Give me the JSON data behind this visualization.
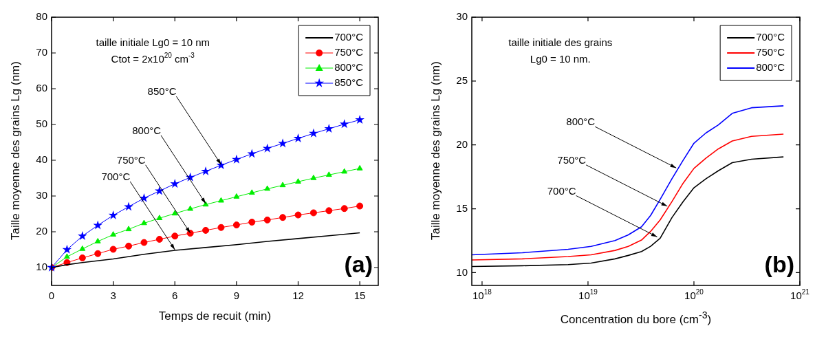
{
  "chart_data": [
    {
      "type": "line",
      "xlabel": "Temps de recuit (min)",
      "ylabel": "Taille moyenne des grains Lg (nm)",
      "xlim": [
        0,
        15.9
      ],
      "xticks": [
        0,
        3,
        6,
        9,
        12,
        15
      ],
      "ylim": [
        5,
        80
      ],
      "yticks": [
        10,
        20,
        30,
        40,
        50,
        60,
        70,
        80
      ],
      "grid": false,
      "legend": "top right",
      "line_style": "solid",
      "x": [
        0,
        0.75,
        1.5,
        2.25,
        3,
        3.75,
        4.5,
        5.25,
        6,
        6.75,
        7.5,
        8.25,
        9,
        9.75,
        10.5,
        11.25,
        12,
        12.75,
        13.5,
        14.25,
        15
      ],
      "annotations": [
        "taille initiale Lg0 = 10 nm",
        "Ctot = 2x10$^{20}$ cm$^{-3}$",
        "(a)",
        {
          "text": "850°C",
          "x": 8.25,
          "y": 38.8
        },
        {
          "text": "800°C",
          "x": 7.5,
          "y": 27.9
        },
        {
          "text": "750°C",
          "x": 6.75,
          "y": 19.65
        },
        {
          "text": "700°C",
          "x": 6,
          "y": 15
        }
      ],
      "series": [
        {
          "name": "700°C",
          "color": "#000000",
          "marker": "none",
          "x": [
            0,
            0.75,
            1.5,
            3,
            4.5,
            6,
            7.5,
            9,
            10.5,
            12,
            13.5,
            15
          ],
          "values": [
            10,
            10.8,
            11.4,
            12.4,
            13.7,
            14.8,
            15.6,
            16.4,
            17.3,
            18.1,
            18.9,
            19.7
          ]
        },
        {
          "name": "750°C",
          "color": "#ff0000",
          "marker": "circle",
          "values": [
            10,
            11.4,
            12.7,
            13.9,
            15.1,
            16,
            17,
            17.9,
            18.8,
            19.6,
            20.4,
            21.2,
            21.9,
            22.7,
            23.3,
            24,
            24.7,
            25.3,
            25.9,
            26.5,
            27.2
          ]
        },
        {
          "name": "800°C",
          "color": "#00ee00",
          "marker": "triangle",
          "values": [
            10,
            13,
            15.2,
            17.3,
            19.2,
            20.7,
            22.4,
            23.8,
            25.1,
            26.4,
            27.6,
            28.7,
            29.8,
            30.9,
            32,
            33,
            34,
            35,
            35.9,
            36.8,
            37.7
          ]
        },
        {
          "name": "850°C",
          "color": "#0000ff",
          "marker": "star",
          "values": [
            10,
            15,
            18.8,
            21.8,
            24.6,
            27,
            29.4,
            31.4,
            33.4,
            35.2,
            36.9,
            38.6,
            40.2,
            41.8,
            43.3,
            44.7,
            46.1,
            47.5,
            48.8,
            50.1,
            51.3
          ]
        }
      ]
    },
    {
      "type": "line",
      "xlabel": "Concentration du bore (cm$^{-3}$)",
      "ylabel": "Taille moyenne des grains Lg (nm)",
      "log": "x",
      "xlim": [
        8e+17,
        1e+21
      ],
      "xticks": [
        {
          "value": 1e+18,
          "label": "10$^{18}$"
        },
        {
          "value": 1e+19,
          "label": "10$^{19}$"
        },
        {
          "value": 1e+20,
          "label": "10$^{20}$"
        },
        {
          "value": 1e+21,
          "label": "10$^{21}$"
        }
      ],
      "ylim": [
        9,
        30
      ],
      "yticks": [
        10,
        15,
        20,
        25,
        30
      ],
      "grid": false,
      "legend": "top right",
      "line_style": "solid",
      "marker": "none",
      "x": [
        8e+17,
        2.4e+18,
        6.5e+18,
        1.07e+19,
        1.8e+19,
        2.4e+19,
        3.2e+19,
        3.9e+19,
        4.8e+19,
        6.2e+19,
        7.9e+19,
        1e+20,
        1.3e+20,
        1.7e+20,
        2.3e+20,
        3.5e+20,
        7e+20
      ],
      "annotations": [
        "taille initiale des grains",
        "Lg0 = 10 nm.",
        "(b)",
        {
          "text": "800°C",
          "x": 6.8e+19,
          "y": 18.2
        },
        {
          "text": "750°C",
          "x": 5.6e+19,
          "y": 15.2
        },
        {
          "text": "700°C",
          "x": 4.5e+19,
          "y": 12.8
        }
      ],
      "series": [
        {
          "name": "700°C",
          "color": "#000000",
          "values": [
            10.48,
            10.54,
            10.63,
            10.75,
            11.08,
            11.35,
            11.65,
            12.06,
            12.69,
            14.31,
            15.56,
            16.64,
            17.35,
            17.98,
            18.61,
            18.88,
            19.06
          ]
        },
        {
          "name": "750°C",
          "color": "#ff0000",
          "values": [
            10.99,
            11.08,
            11.26,
            11.4,
            11.74,
            12.06,
            12.55,
            13.23,
            14.13,
            15.56,
            17,
            18.16,
            18.97,
            19.69,
            20.31,
            20.67,
            20.85
          ]
        },
        {
          "name": "800°C",
          "color": "#0000ff",
          "values": [
            11.4,
            11.56,
            11.83,
            12.06,
            12.51,
            12.96,
            13.59,
            14.48,
            15.74,
            17.35,
            18.79,
            20.13,
            20.94,
            21.57,
            22.47,
            22.91,
            23.06
          ]
        }
      ]
    }
  ]
}
